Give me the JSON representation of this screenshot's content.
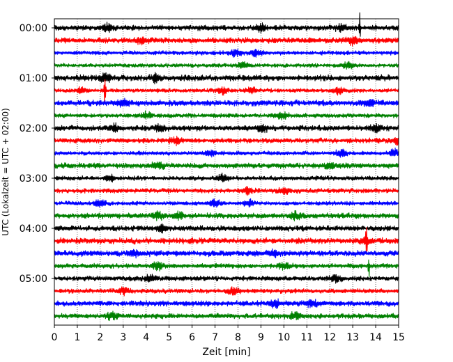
{
  "chart_data": {
    "type": "line",
    "title": "",
    "xlabel": "Zeit  [min]",
    "ylabel": "UTC (Lokalzeit = UTC + 02:00)",
    "xlim": [
      0,
      15
    ],
    "x_ticks": [
      "0",
      "1",
      "2",
      "3",
      "4",
      "5",
      "6",
      "7",
      "8",
      "9",
      "10",
      "11",
      "12",
      "13",
      "14",
      "15"
    ],
    "y_tick_labels": [
      "00:00",
      "01:00",
      "02:00",
      "03:00",
      "04:00",
      "05:00"
    ],
    "trace_interval_min": 15,
    "grid": "vertical dotted at each minute",
    "colors": [
      "#000000",
      "#ff0000",
      "#0000ff",
      "#008000"
    ],
    "traces": [
      {
        "time": "00:00",
        "color": "#000000",
        "bursts": [
          2.3,
          9.0,
          12.5
        ],
        "spike": {
          "x": 13.3,
          "amp": 1.2
        }
      },
      {
        "time": "00:15",
        "color": "#ff0000",
        "bursts": [
          3.8,
          13.0
        ]
      },
      {
        "time": "00:30",
        "color": "#0000ff",
        "bursts": [
          7.9,
          8.8
        ]
      },
      {
        "time": "00:45",
        "color": "#008000",
        "bursts": [
          8.2,
          12.8
        ]
      },
      {
        "time": "01:00",
        "color": "#000000",
        "bursts": [
          2.2,
          4.4
        ]
      },
      {
        "time": "01:15",
        "color": "#ff0000",
        "bursts": [
          1.2,
          7.3,
          8.6,
          12.4
        ],
        "spike": {
          "x": 2.2,
          "amp": 1.2
        }
      },
      {
        "time": "01:30",
        "color": "#0000ff",
        "bursts": [
          3.0,
          13.7
        ]
      },
      {
        "time": "01:45",
        "color": "#008000",
        "bursts": [
          4.0,
          9.9
        ]
      },
      {
        "time": "02:00",
        "color": "#000000",
        "bursts": [
          2.6,
          4.6,
          9.1,
          14.0
        ]
      },
      {
        "time": "02:15",
        "color": "#ff0000",
        "bursts": [
          5.3,
          15.0
        ]
      },
      {
        "time": "02:30",
        "color": "#0000ff",
        "bursts": [
          6.8,
          12.5,
          14.8
        ]
      },
      {
        "time": "02:45",
        "color": "#008000",
        "bursts": [
          4.5,
          12.0
        ]
      },
      {
        "time": "03:00",
        "color": "#000000",
        "bursts": [
          2.4,
          7.3
        ]
      },
      {
        "time": "03:15",
        "color": "#ff0000",
        "bursts": [
          8.4,
          10.0
        ]
      },
      {
        "time": "03:30",
        "color": "#0000ff",
        "bursts": [
          2.0,
          7.0,
          8.5
        ]
      },
      {
        "time": "03:45",
        "color": "#008000",
        "bursts": [
          4.5,
          5.4,
          10.5
        ]
      },
      {
        "time": "04:00",
        "color": "#000000",
        "bursts": [
          4.7
        ]
      },
      {
        "time": "04:15",
        "color": "#ff0000",
        "bursts": [
          13.6
        ],
        "spike": {
          "x": 13.6,
          "amp": 2.2
        }
      },
      {
        "time": "04:30",
        "color": "#0000ff",
        "bursts": [
          3.5,
          9.5
        ]
      },
      {
        "time": "04:45",
        "color": "#008000",
        "bursts": [
          4.5,
          10.0
        ],
        "spike": {
          "x": 13.7,
          "amp": 0.8
        }
      },
      {
        "time": "05:00",
        "color": "#000000",
        "bursts": [
          4.2,
          12.3
        ]
      },
      {
        "time": "05:15",
        "color": "#ff0000",
        "bursts": [
          3.0,
          7.8
        ]
      },
      {
        "time": "05:30",
        "color": "#0000ff",
        "bursts": [
          9.6,
          11.2
        ]
      },
      {
        "time": "05:45",
        "color": "#008000",
        "bursts": [
          2.5,
          10.5
        ]
      }
    ]
  }
}
